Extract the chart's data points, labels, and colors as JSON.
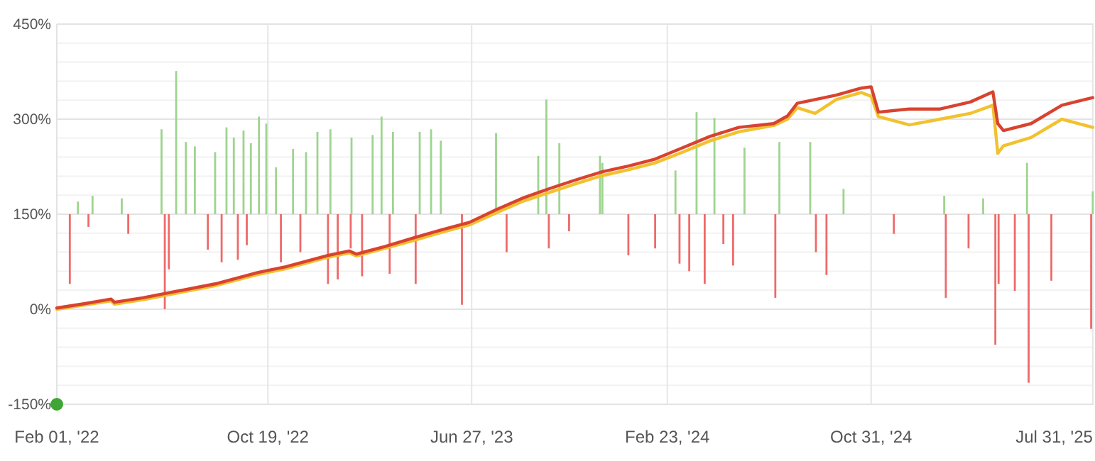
{
  "chart_data": {
    "type": "line",
    "xlim": [
      "2022-02-01",
      "2025-08-01"
    ],
    "ylim": [
      -150,
      450
    ],
    "xticks": [
      {
        "value": "2022-02-01",
        "label": "Feb 01, '22"
      },
      {
        "value": "2022-10-19",
        "label": "Oct 19, '22"
      },
      {
        "value": "2023-06-27",
        "label": "Jun 27, '23"
      },
      {
        "value": "2024-02-23",
        "label": "Feb 23, '24"
      },
      {
        "value": "2024-10-31",
        "label": "Oct 31, '24"
      },
      {
        "value": "2025-07-31",
        "label": "Jul 31, '25"
      }
    ],
    "yticks": [
      {
        "value": -150,
        "label": "-150%"
      },
      {
        "value": -120,
        "label": null
      },
      {
        "value": -90,
        "label": null
      },
      {
        "value": -60,
        "label": null
      },
      {
        "value": -30,
        "label": null
      },
      {
        "value": 0,
        "label": "0%"
      },
      {
        "value": 30,
        "label": null
      },
      {
        "value": 60,
        "label": null
      },
      {
        "value": 90,
        "label": null
      },
      {
        "value": 120,
        "label": null
      },
      {
        "value": 150,
        "label": "150%"
      },
      {
        "value": 180,
        "label": null
      },
      {
        "value": 210,
        "label": null
      },
      {
        "value": 240,
        "label": null
      },
      {
        "value": 270,
        "label": null
      },
      {
        "value": 300,
        "label": "300%"
      },
      {
        "value": 330,
        "label": null
      },
      {
        "value": 360,
        "label": null
      },
      {
        "value": 390,
        "label": null
      },
      {
        "value": 420,
        "label": null
      },
      {
        "value": 450,
        "label": "450%"
      }
    ],
    "grid": true,
    "line_style": "solid",
    "marker": "none",
    "series": [
      {
        "type": "bar",
        "x": [
          "2022-02-17",
          "2022-02-27",
          "2022-03-12",
          "2022-03-17",
          "2022-04-22",
          "2022-04-30",
          "2022-06-10",
          "2022-06-14",
          "2022-06-19",
          "2022-06-28",
          "2022-07-10",
          "2022-07-21",
          "2022-08-06",
          "2022-08-15",
          "2022-08-23",
          "2022-08-29",
          "2022-09-07",
          "2022-09-12",
          "2022-09-19",
          "2022-09-23",
          "2022-09-28",
          "2022-10-08",
          "2022-10-17",
          "2022-10-29",
          "2022-11-04",
          "2022-11-19",
          "2022-11-28",
          "2022-12-05",
          "2022-12-19",
          "2023-01-01",
          "2023-01-04",
          "2023-01-13",
          "2023-01-29",
          "2023-01-30",
          "2023-02-12",
          "2023-02-25",
          "2023-03-08",
          "2023-03-18",
          "2023-03-22",
          "2023-04-19",
          "2023-04-24",
          "2023-05-08",
          "2023-05-20",
          "2023-06-15",
          "2023-07-27",
          "2023-08-09",
          "2023-09-17",
          "2023-09-27",
          "2023-09-30",
          "2023-10-13",
          "2023-10-25",
          "2023-12-02",
          "2023-12-05",
          "2024-01-06",
          "2024-02-08",
          "2024-03-04",
          "2024-03-09",
          "2024-03-21",
          "2024-03-30",
          "2024-04-09",
          "2024-04-21",
          "2024-05-02",
          "2024-05-14",
          "2024-05-28",
          "2024-07-05",
          "2024-07-10",
          "2024-08-17",
          "2024-08-24",
          "2024-09-06",
          "2024-09-27",
          "2024-11-28",
          "2025-01-29",
          "2025-01-31",
          "2025-02-28",
          "2025-03-18",
          "2025-04-02",
          "2025-04-06",
          "2025-04-26",
          "2025-05-11",
          "2025-05-13",
          "2025-06-10",
          "2025-07-29",
          "2025-07-31"
        ],
        "values": [
          -110,
          20,
          -20,
          29,
          25,
          -31,
          134,
          -150,
          -87,
          226,
          114,
          107,
          -56,
          98,
          -76,
          137,
          121,
          -72,
          132,
          -49,
          112,
          154,
          143,
          74,
          -76,
          103,
          -60,
          98,
          130,
          -110,
          134,
          -103,
          -54,
          121,
          -98,
          125,
          154,
          -94,
          130,
          -110,
          130,
          134,
          116,
          -143,
          128,
          -60,
          92,
          181,
          -54,
          112,
          -27,
          92,
          81,
          -65,
          -54,
          69,
          -78,
          -90,
          161,
          -110,
          152,
          -47,
          -81,
          105,
          -132,
          114,
          114,
          -60,
          -96,
          40,
          -31,
          29,
          -132,
          -54,
          25,
          -206,
          -110,
          -121,
          81,
          -266,
          -105,
          -181,
          36
        ],
        "base": [
          150,
          150,
          150,
          150,
          150,
          150,
          150,
          150,
          150,
          150,
          150,
          150,
          150,
          150,
          150,
          150,
          150,
          150,
          150,
          150,
          150,
          150,
          150,
          150,
          150,
          150,
          150,
          150,
          150,
          150,
          150,
          150,
          150,
          150,
          150,
          150,
          150,
          150,
          150,
          150,
          150,
          150,
          150,
          150,
          150,
          150,
          150,
          150,
          150,
          150,
          150,
          150,
          150,
          150,
          150,
          150,
          150,
          150,
          150,
          150,
          150,
          150,
          150,
          150,
          150,
          150,
          150,
          150,
          150,
          150,
          150,
          150,
          150,
          150,
          150,
          150,
          150,
          150,
          150,
          150,
          150,
          150,
          150
        ],
        "colors": [
          "#ee6a6a",
          "#9ed48f",
          "#ee6a6a",
          "#9ed48f",
          "#9ed48f",
          "#ee6a6a",
          "#9ed48f",
          "#ee6a6a",
          "#ee6a6a",
          "#9ed48f",
          "#9ed48f",
          "#9ed48f",
          "#ee6a6a",
          "#9ed48f",
          "#ee6a6a",
          "#9ed48f",
          "#9ed48f",
          "#ee6a6a",
          "#9ed48f",
          "#ee6a6a",
          "#9ed48f",
          "#9ed48f",
          "#9ed48f",
          "#9ed48f",
          "#ee6a6a",
          "#9ed48f",
          "#ee6a6a",
          "#9ed48f",
          "#9ed48f",
          "#ee6a6a",
          "#9ed48f",
          "#ee6a6a",
          "#ee6a6a",
          "#9ed48f",
          "#ee6a6a",
          "#9ed48f",
          "#9ed48f",
          "#ee6a6a",
          "#9ed48f",
          "#ee6a6a",
          "#9ed48f",
          "#9ed48f",
          "#9ed48f",
          "#ee6a6a",
          "#9ed48f",
          "#ee6a6a",
          "#9ed48f",
          "#9ed48f",
          "#ee6a6a",
          "#9ed48f",
          "#ee6a6a",
          "#9ed48f",
          "#9ed48f",
          "#ee6a6a",
          "#ee6a6a",
          "#9ed48f",
          "#ee6a6a",
          "#ee6a6a",
          "#9ed48f",
          "#ee6a6a",
          "#9ed48f",
          "#ee6a6a",
          "#ee6a6a",
          "#9ed48f",
          "#ee6a6a",
          "#9ed48f",
          "#9ed48f",
          "#ee6a6a",
          "#ee6a6a",
          "#9ed48f",
          "#ee6a6a",
          "#9ed48f",
          "#ee6a6a",
          "#ee6a6a",
          "#9ed48f",
          "#ee6a6a",
          "#ee6a6a",
          "#ee6a6a",
          "#9ed48f",
          "#ee6a6a",
          "#ee6a6a",
          "#ee6a6a",
          "#9ed48f"
        ]
      },
      {
        "color": "#f2c12e",
        "x": [
          "2022-02-01",
          "2022-03-08",
          "2022-04-09",
          "2022-04-13",
          "2022-05-18",
          "2022-06-23",
          "2022-08-15",
          "2022-10-07",
          "2022-11-10",
          "2023-01-01",
          "2023-01-27",
          "2023-02-05",
          "2023-03-12",
          "2023-04-15",
          "2023-05-20",
          "2023-06-24",
          "2023-07-27",
          "2023-08-28",
          "2023-09-30",
          "2023-11-02",
          "2023-12-05",
          "2024-01-06",
          "2024-02-08",
          "2024-03-13",
          "2024-04-16",
          "2024-05-21",
          "2024-07-03",
          "2024-07-20",
          "2024-08-01",
          "2024-08-23",
          "2024-09-18",
          "2024-10-19",
          "2024-10-31",
          "2024-11-09",
          "2024-12-17",
          "2025-01-24",
          "2025-03-02",
          "2025-03-30",
          "2025-04-05",
          "2025-04-12",
          "2025-05-16",
          "2025-06-23",
          "2025-07-31"
        ],
        "values": [
          0,
          7,
          13,
          8,
          15,
          24,
          37,
          55,
          64,
          82,
          89,
          84,
          96,
          108,
          121,
          133,
          152,
          170,
          184,
          198,
          211,
          220,
          231,
          248,
          266,
          280,
          290,
          300,
          318,
          309,
          331,
          342,
          336,
          304,
          291,
          300,
          309,
          322,
          246,
          258,
          271,
          300,
          287
        ]
      },
      {
        "color": "#d8432f",
        "x": [
          "2022-02-01",
          "2022-03-08",
          "2022-04-09",
          "2022-04-13",
          "2022-05-18",
          "2022-06-23",
          "2022-08-15",
          "2022-10-07",
          "2022-11-10",
          "2023-01-01",
          "2023-01-27",
          "2023-02-05",
          "2023-03-12",
          "2023-04-15",
          "2023-05-20",
          "2023-06-24",
          "2023-07-27",
          "2023-08-28",
          "2023-09-30",
          "2023-11-02",
          "2023-12-05",
          "2024-01-06",
          "2024-02-08",
          "2024-03-13",
          "2024-04-16",
          "2024-05-21",
          "2024-07-03",
          "2024-07-20",
          "2024-08-01",
          "2024-08-23",
          "2024-09-18",
          "2024-10-19",
          "2024-10-31",
          "2024-11-09",
          "2024-12-17",
          "2025-01-24",
          "2025-03-02",
          "2025-03-30",
          "2025-04-05",
          "2025-04-12",
          "2025-05-16",
          "2025-06-23",
          "2025-07-31"
        ],
        "values": [
          2,
          9,
          16,
          11,
          18,
          27,
          40,
          58,
          67,
          85,
          92,
          87,
          99,
          112,
          125,
          137,
          157,
          175,
          190,
          204,
          217,
          226,
          237,
          255,
          273,
          287,
          293,
          305,
          325,
          331,
          338,
          349,
          351,
          311,
          316,
          316,
          327,
          343,
          293,
          282,
          293,
          322,
          334
        ]
      },
      {
        "type": "scatter",
        "marker": "circle",
        "color": "#3fa535",
        "x": [
          "2022-02-01"
        ],
        "values": [
          -150
        ]
      }
    ]
  }
}
